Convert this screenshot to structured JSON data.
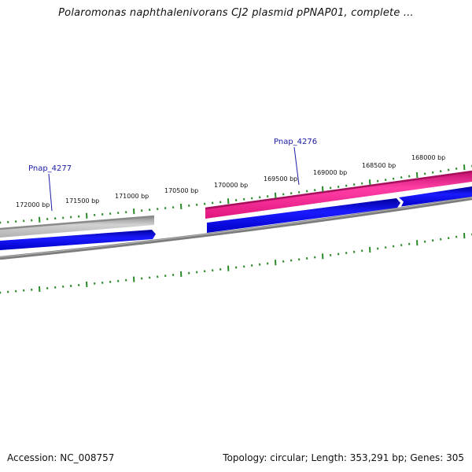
{
  "title": "Polaromonas naphthalenivorans CJ2 plasmid pPNAP01, complete ...",
  "footer": {
    "accession": "Accession: NC_008757",
    "summary": "Topology: circular; Length: 353,291 bp; Genes: 305"
  },
  "colors": {
    "tick": "#2a8a2a",
    "forward_gene": "#ee1c8c",
    "reverse_gene": "#0000e6",
    "selected_gene": "#bdbdbd",
    "backbone": "#808080",
    "label_link": "#1a1aa8"
  },
  "tick_labels": [
    "168000 bp",
    "168500 bp",
    "169000 bp",
    "169500 bp",
    "170000 bp",
    "170500 bp",
    "171000 bp",
    "171500 bp",
    "172000 bp"
  ],
  "gene_labels": [
    "Pnap_4276",
    "Pnap_4277"
  ]
}
